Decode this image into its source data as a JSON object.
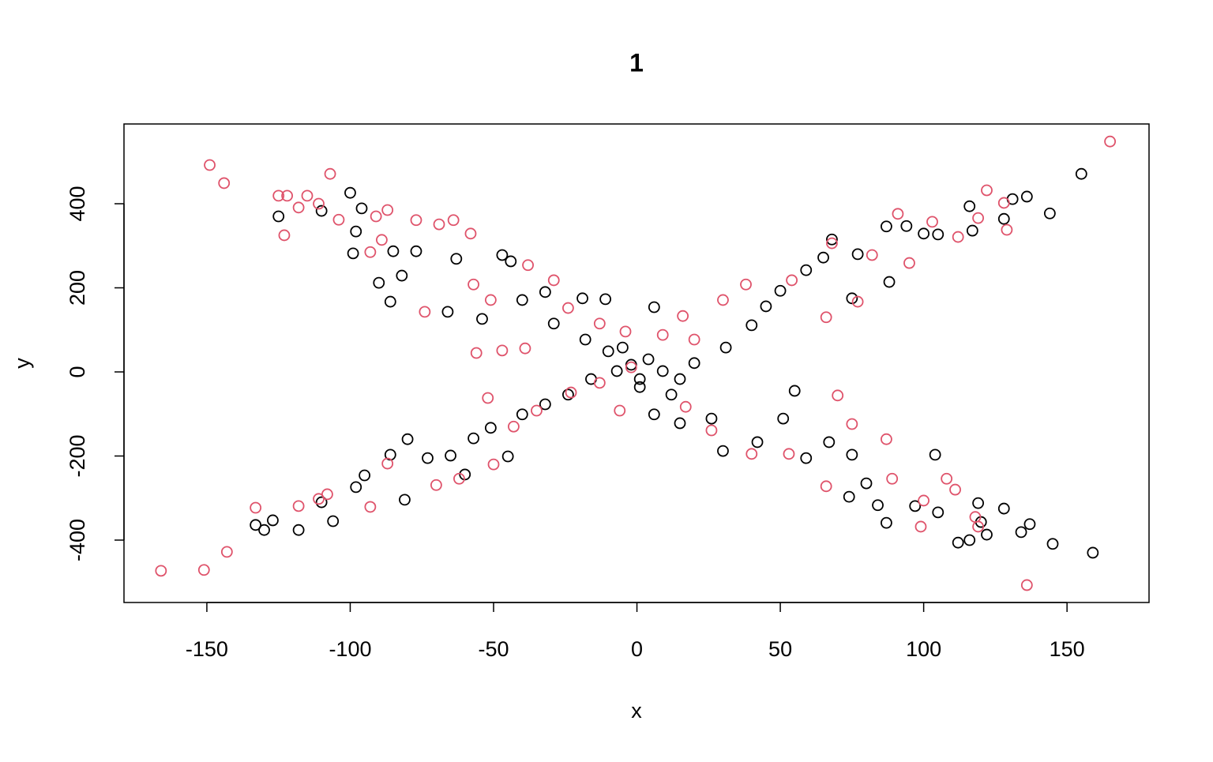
{
  "chart_data": {
    "type": "scatter",
    "title": "1",
    "x_label": "x",
    "y_label": "y",
    "xlim": [
      -178.9,
      178.6
    ],
    "ylim": [
      -548.4,
      589.7
    ],
    "xticks": [
      -150,
      -100,
      -50,
      0,
      50,
      100,
      150
    ],
    "yticks": [
      -400,
      -200,
      0,
      200,
      400
    ],
    "series": [
      {
        "color": "#000000",
        "x": [
          155,
          136,
          144,
          131,
          128,
          116,
          117,
          105,
          100,
          94,
          87,
          88,
          77,
          68,
          65,
          75,
          59,
          50,
          45,
          40,
          31,
          20,
          6,
          -133,
          -130,
          -118,
          -127,
          -110,
          -106,
          -98,
          -95,
          -86,
          -81,
          -80,
          -73,
          -65,
          -60,
          -57,
          -51,
          -45,
          -40,
          -32,
          -24,
          -16,
          -7,
          -100,
          -96,
          -98,
          -99,
          -110,
          -125,
          -86,
          -90,
          -82,
          -85,
          -77,
          -63,
          -66,
          -54,
          -47,
          -44,
          -40,
          -32,
          -19,
          -11,
          -29,
          -18,
          -10,
          159,
          145,
          137,
          134,
          122,
          120,
          128,
          119,
          112,
          116,
          104,
          105,
          97,
          87,
          84,
          74,
          80,
          75,
          67,
          59,
          55,
          51,
          42,
          30,
          26,
          15,
          6,
          12,
          1,
          -2,
          4,
          9,
          15,
          -5,
          1
        ],
        "y": [
          471,
          417,
          377,
          411,
          364,
          394,
          336,
          327,
          329,
          347,
          346,
          214,
          280,
          315,
          272,
          175,
          242,
          193,
          156,
          111,
          58,
          21,
          154,
          -364,
          -376,
          -376,
          -353,
          -310,
          -355,
          -274,
          -246,
          -197,
          -304,
          -160,
          -205,
          -199,
          -244,
          -158,
          -133,
          -201,
          -101,
          -77,
          -54,
          -17,
          2,
          426,
          389,
          334,
          282,
          383,
          370,
          167,
          212,
          229,
          287,
          287,
          269,
          143,
          126,
          278,
          263,
          171,
          190,
          175,
          173,
          115,
          77,
          49,
          -430,
          -409,
          -362,
          -381,
          -387,
          -357,
          -325,
          -312,
          -406,
          -400,
          -197,
          -334,
          -319,
          -359,
          -317,
          -297,
          -265,
          -197,
          -167,
          -205,
          -45,
          -111,
          -167,
          -188,
          -111,
          -122,
          -101,
          -54,
          -36,
          17,
          30,
          2,
          -17,
          58,
          -17
        ]
      },
      {
        "color": "#DF536B",
        "x": [
          165,
          -166,
          -151,
          -143,
          -149,
          -144,
          -107,
          -125,
          -122,
          -123,
          -115,
          -118,
          -111,
          -104,
          -91,
          -87,
          -93,
          -89,
          -77,
          -69,
          -64,
          -58,
          -74,
          -56,
          -47,
          -39,
          -38,
          -57,
          -51,
          -29,
          -24,
          -13,
          -4,
          9,
          16,
          122,
          128,
          129,
          112,
          103,
          91,
          95,
          82,
          77,
          66,
          68,
          54,
          38,
          30,
          20,
          119,
          136,
          99,
          100,
          108,
          111,
          118,
          119,
          87,
          89,
          70,
          66,
          75,
          53,
          40,
          26,
          17,
          -133,
          -118,
          -111,
          -108,
          -93,
          -87,
          -70,
          -62,
          -50,
          -52,
          -43,
          -35,
          -23,
          -13,
          -6,
          -2
        ],
        "y": [
          548,
          -473,
          -471,
          -428,
          492,
          449,
          471,
          419,
          419,
          325,
          419,
          391,
          400,
          362,
          370,
          385,
          285,
          314,
          361,
          351,
          361,
          329,
          143,
          45,
          51,
          56,
          254,
          208,
          171,
          218,
          152,
          115,
          96,
          88,
          133,
          432,
          402,
          338,
          321,
          357,
          376,
          259,
          278,
          167,
          130,
          306,
          218,
          208,
          171,
          77,
          366,
          -507,
          -368,
          -306,
          -254,
          -280,
          -345,
          -368,
          -160,
          -254,
          -56,
          -272,
          -124,
          -195,
          -195,
          -139,
          -83,
          -323,
          -319,
          -302,
          -291,
          -321,
          -218,
          -269,
          -254,
          -220,
          -62,
          -130,
          -92,
          -49,
          -26,
          -92,
          11
        ]
      }
    ]
  }
}
